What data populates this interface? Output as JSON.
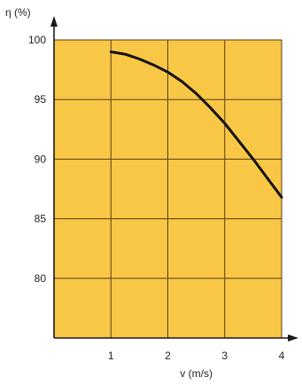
{
  "colors": {
    "plot_fill": "#F9C746",
    "grid": "#5a3a1a",
    "axis": "#1a1a1a",
    "curve": "#111111",
    "text": "#222222"
  },
  "chart_data": {
    "type": "line",
    "xlabel": "v (m/s)",
    "ylabel": "η (%)",
    "xlim": [
      0,
      4
    ],
    "ylim": [
      75,
      100
    ],
    "grid": true,
    "x_ticks": [
      "1",
      "2",
      "3",
      "4"
    ],
    "y_ticks": [
      "80",
      "85",
      "90",
      "95",
      "100"
    ],
    "series": [
      {
        "x": [
          1.0,
          1.25,
          1.5,
          1.75,
          2.0,
          2.25,
          2.5,
          2.75,
          3.0,
          3.25,
          3.5,
          3.75,
          4.0
        ],
        "values": [
          99.0,
          98.8,
          98.4,
          97.9,
          97.3,
          96.5,
          95.5,
          94.3,
          93.0,
          91.5,
          90.0,
          88.4,
          86.8
        ]
      }
    ]
  }
}
